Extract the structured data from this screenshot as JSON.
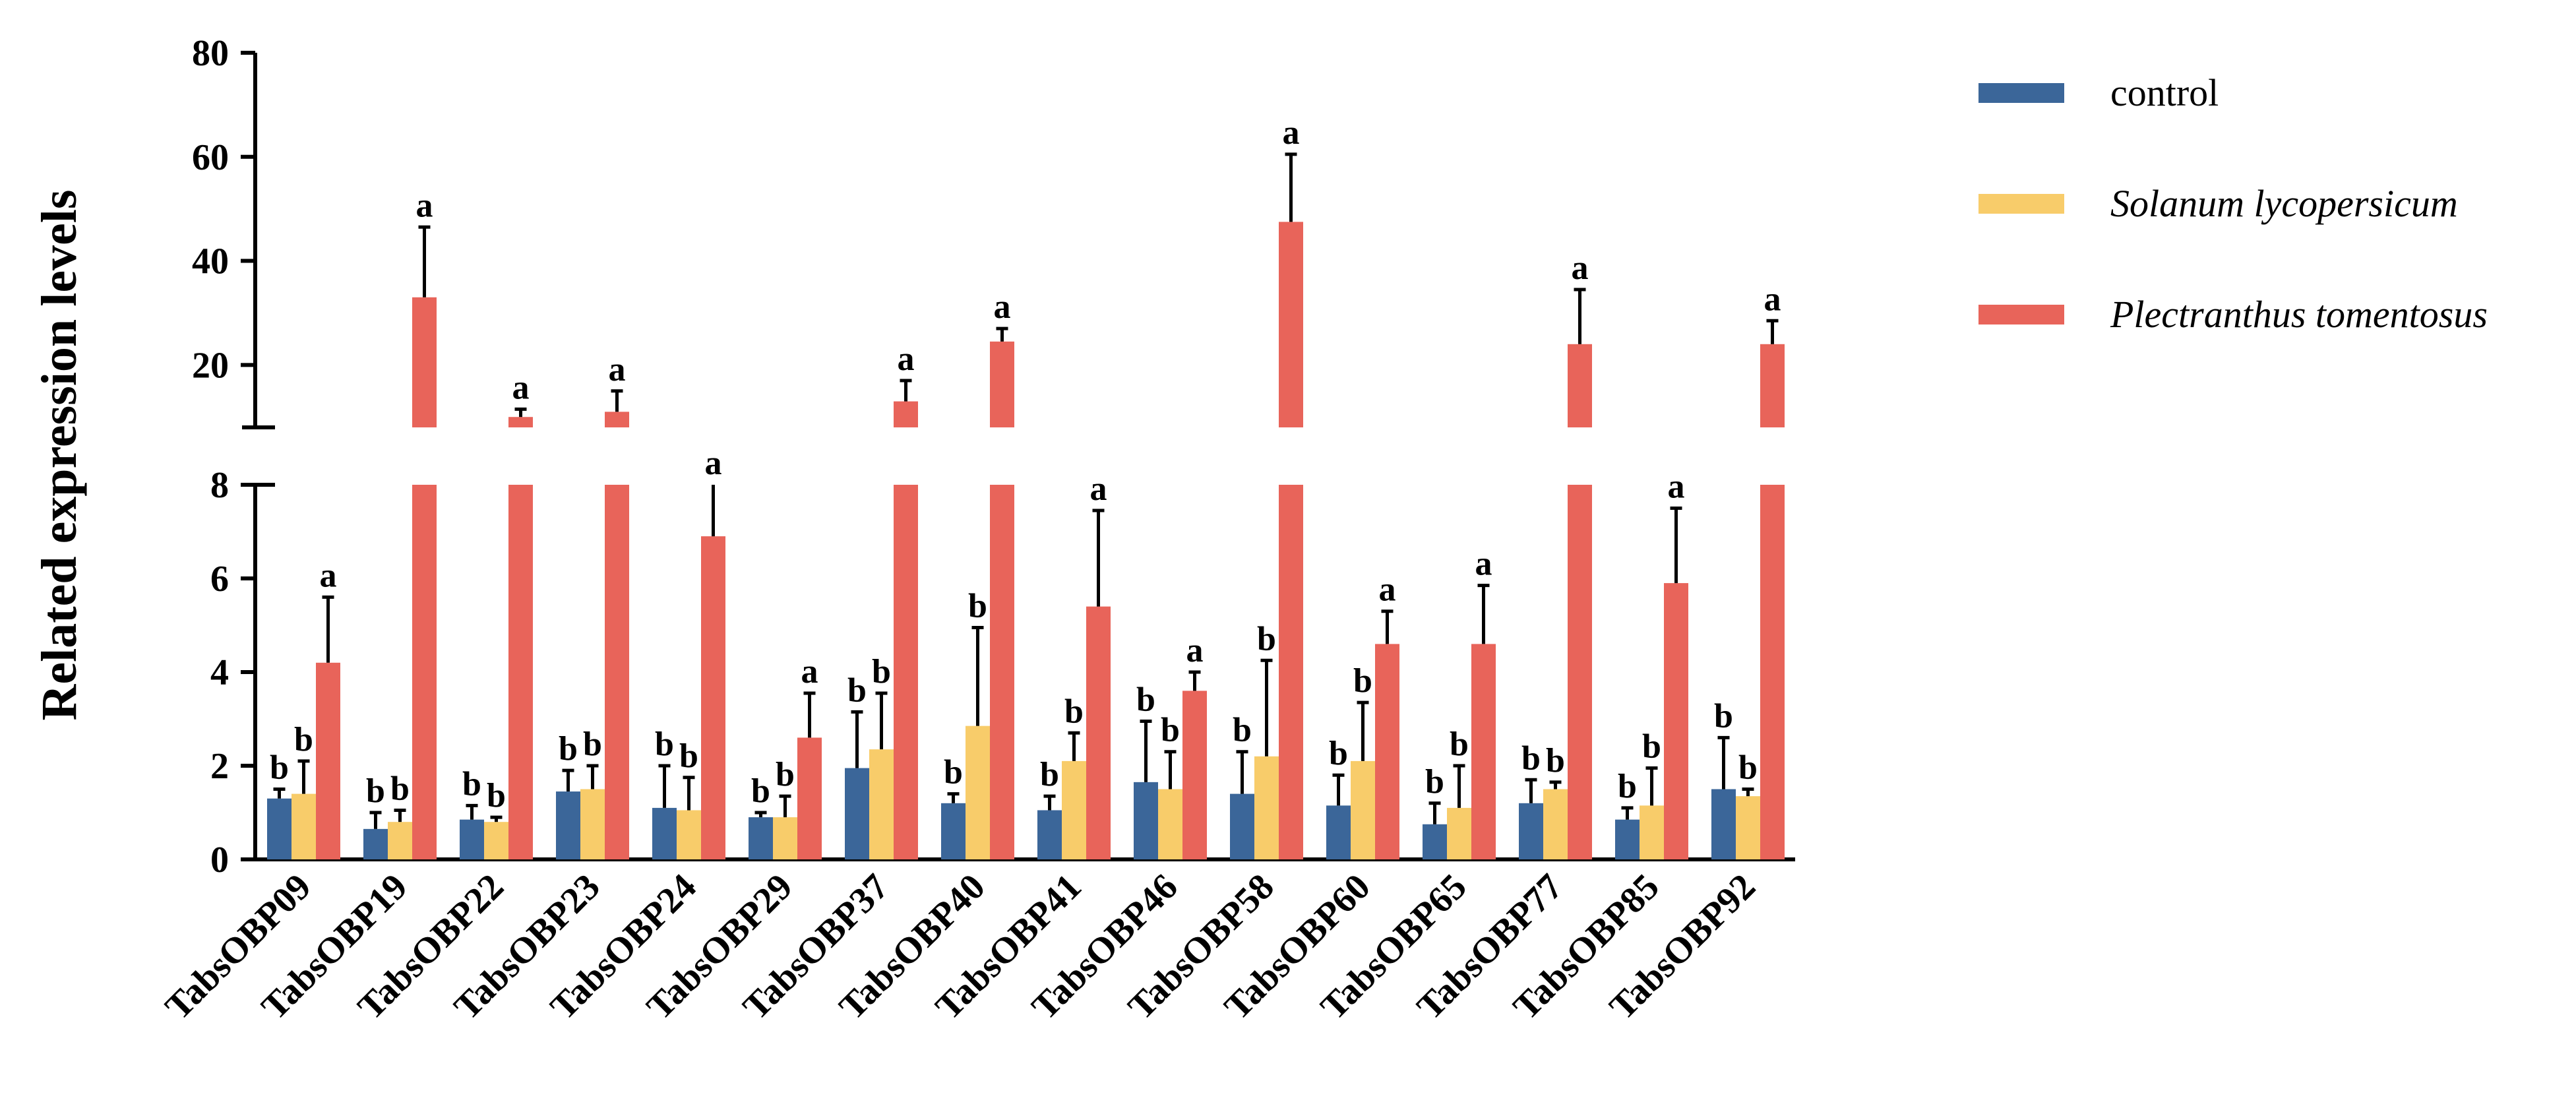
{
  "chart_data": {
    "type": "bar",
    "title": "",
    "xlabel": "",
    "ylabel": "Related expression levels",
    "axis_break": {
      "lower_range": [
        0,
        8
      ],
      "upper_range": [
        8,
        80
      ]
    },
    "lower_ticks": [
      "0",
      "2",
      "4",
      "6",
      "8"
    ],
    "upper_ticks": [
      "20",
      "40",
      "60",
      "80"
    ],
    "legend_position": "top-right",
    "categories": [
      "TabsOBP09",
      "TabsOBP19",
      "TabsOBP22",
      "TabsOBP23",
      "TabsOBP24",
      "TabsOBP29",
      "TabsOBP37",
      "TabsOBP40",
      "TabsOBP41",
      "TabsOBP46",
      "TabsOBP58",
      "TabsOBP60",
      "TabsOBP65",
      "TabsOBP77",
      "TabsOBP85",
      "TabsOBP92"
    ],
    "series": [
      {
        "name": "control",
        "italic": false,
        "color": "#3B6699",
        "values": [
          1.3,
          0.65,
          0.85,
          1.45,
          1.1,
          0.9,
          1.95,
          1.2,
          1.05,
          1.65,
          1.4,
          1.15,
          0.75,
          1.2,
          0.85,
          1.5
        ],
        "errors": [
          0.2,
          0.35,
          0.3,
          0.45,
          0.9,
          0.1,
          1.2,
          0.2,
          0.3,
          1.3,
          0.9,
          0.65,
          0.45,
          0.5,
          0.25,
          1.1
        ],
        "significance": [
          "b",
          "b",
          "b",
          "b",
          "b",
          "b",
          "b",
          "b",
          "b",
          "b",
          "b",
          "b",
          "b",
          "b",
          "b",
          "b"
        ]
      },
      {
        "name": "Solanum lycopersicum",
        "italic": true,
        "color": "#F8CC6A",
        "values": [
          1.4,
          0.8,
          0.8,
          1.5,
          1.05,
          0.9,
          2.35,
          2.85,
          2.1,
          1.5,
          2.2,
          2.1,
          1.1,
          1.5,
          1.15,
          1.35
        ],
        "errors": [
          0.7,
          0.25,
          0.1,
          0.5,
          0.7,
          0.45,
          1.2,
          2.1,
          0.6,
          0.8,
          2.05,
          1.25,
          0.9,
          0.15,
          0.8,
          0.15
        ],
        "significance": [
          "b",
          "b",
          "b",
          "b",
          "b",
          "b",
          "b",
          "b",
          "b",
          "b",
          "b",
          "b",
          "b",
          "b",
          "b",
          "b"
        ]
      },
      {
        "name": "Plectranthus tomentosus",
        "italic": true,
        "color": "#E8645A",
        "values": [
          4.2,
          33,
          10,
          11,
          6.9,
          2.6,
          13,
          24.5,
          5.4,
          3.6,
          47.5,
          4.6,
          4.6,
          24,
          5.9,
          24
        ],
        "errors": [
          1.4,
          13.5,
          1.5,
          4,
          1.5,
          0.95,
          4,
          2.5,
          2.05,
          0.4,
          13,
          0.7,
          1.25,
          10.5,
          1.6,
          4.5
        ],
        "significance": [
          "a",
          "a",
          "a",
          "a",
          "a",
          "a",
          "a",
          "a",
          "a",
          "a",
          "a",
          "a",
          "a",
          "a",
          "a",
          "a"
        ]
      }
    ]
  }
}
